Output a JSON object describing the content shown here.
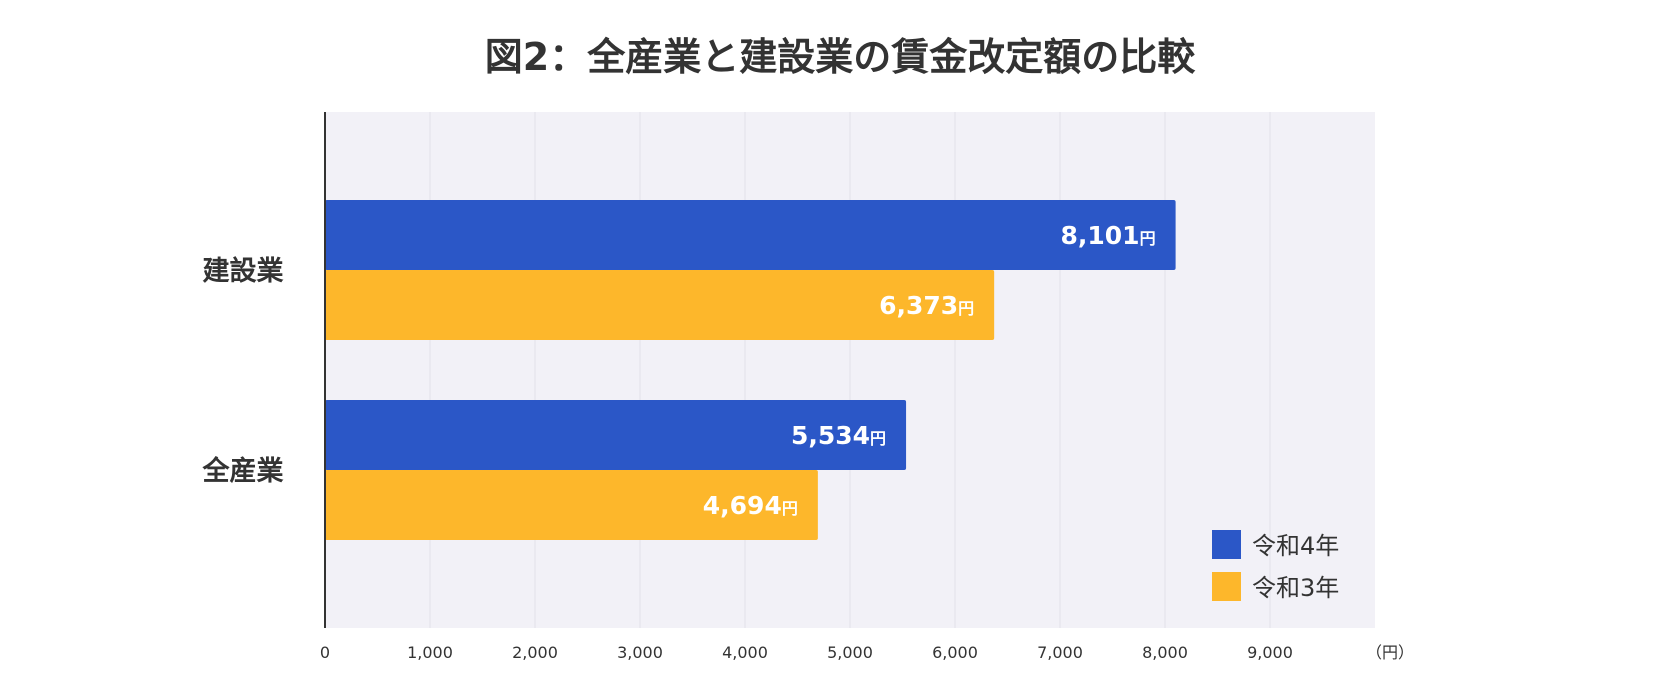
{
  "chart_data": {
    "type": "bar",
    "orientation": "horizontal",
    "title": "図2：全産業と建設業の賃金改定額の比較",
    "categories": [
      "建設業",
      "全産業"
    ],
    "series": [
      {
        "name": "令和4年",
        "values": [
          8101,
          5534
        ],
        "color": "#2b57c7"
      },
      {
        "name": "令和3年",
        "values": [
          6373,
          4694
        ],
        "color": "#fdb72b"
      }
    ],
    "value_labels": [
      [
        "8,101",
        "5,534"
      ],
      [
        "6,373",
        "4,694"
      ]
    ],
    "value_unit_label": "円",
    "xlim": [
      0,
      10000
    ],
    "xticks": [
      0,
      1000,
      2000,
      3000,
      4000,
      5000,
      6000,
      7000,
      8000,
      9000
    ],
    "xtick_labels": [
      "0",
      "1,000",
      "2,000",
      "3,000",
      "4,000",
      "5,000",
      "6,000",
      "7,000",
      "8,000",
      "9,000"
    ],
    "xlabel": "（円）",
    "ylabel": "",
    "grid": true,
    "legend_position": "bottom-right",
    "plot_background": "#f2f1f7"
  }
}
